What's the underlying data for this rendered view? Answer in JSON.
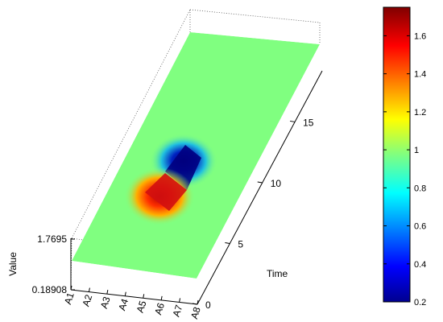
{
  "chart_data": {
    "type": "surface",
    "title": "",
    "xlabel": "",
    "ylabel": "Time",
    "zlabel": "Value",
    "x_categories": [
      "A1",
      "A2",
      "A3",
      "A4",
      "A5",
      "A6",
      "A7",
      "A8"
    ],
    "y_ticks": [
      0,
      5,
      10,
      15
    ],
    "z_ticks": [
      "0.18908",
      "1.7695"
    ],
    "z_range": [
      0.18908,
      1.7695
    ],
    "colorbar": {
      "colormap": "jet",
      "range": [
        0.2,
        1.75
      ],
      "ticks": [
        "0.2",
        "0.4",
        "0.6",
        "0.8",
        "1",
        "1.2",
        "1.4",
        "1.6"
      ]
    },
    "baseline_value": 1.0,
    "features": [
      {
        "kind": "peak",
        "value": 1.7695,
        "x_category": "A4",
        "time": 9
      },
      {
        "kind": "trough",
        "value": 0.18908,
        "x_category": "A5",
        "time": 11
      }
    ],
    "grid": false
  },
  "colors": {
    "baseline": "#80ff80",
    "peak": "#d21010",
    "trough": "#000080"
  }
}
